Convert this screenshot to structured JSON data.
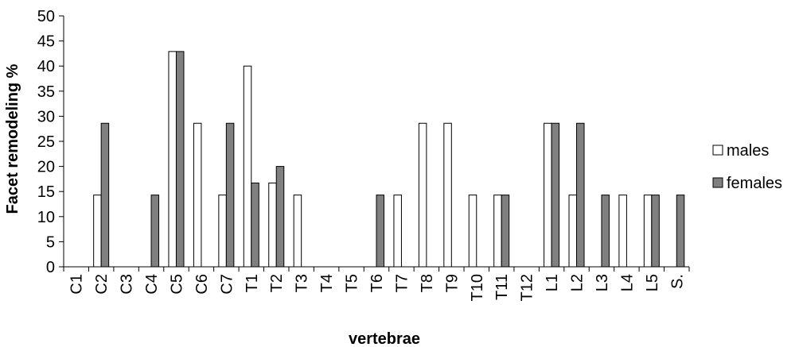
{
  "chart_data": {
    "type": "bar",
    "title": "",
    "xlabel": "vertebrae",
    "ylabel": "Facet  remodeling %",
    "ylim": [
      0,
      50
    ],
    "yticks": [
      0,
      5,
      10,
      15,
      20,
      25,
      30,
      35,
      40,
      45,
      50
    ],
    "grid": false,
    "legend_position": "right",
    "categories": [
      "C1",
      "C2",
      "C3",
      "C4",
      "C5",
      "C6",
      "C7",
      "T1",
      "T2",
      "T3",
      "T4",
      "T5",
      "T6",
      "T7",
      "T8",
      "T9",
      "T10",
      "T11",
      "T12",
      "L1",
      "L2",
      "L3",
      "L4",
      "L5",
      "S."
    ],
    "series": [
      {
        "name": "males",
        "color": "#ffffff",
        "values": [
          0,
          14.3,
          0,
          0,
          42.9,
          28.6,
          14.3,
          40,
          16.7,
          14.3,
          0,
          0,
          0,
          14.3,
          28.6,
          28.6,
          14.3,
          14.3,
          0,
          28.6,
          14.3,
          0,
          14.3,
          14.3,
          0
        ]
      },
      {
        "name": "females",
        "color": "#808080",
        "values": [
          0,
          28.6,
          0,
          14.3,
          42.9,
          0,
          28.6,
          16.7,
          20,
          0,
          0,
          0,
          14.3,
          0,
          0,
          0,
          0,
          14.3,
          0,
          28.6,
          28.6,
          14.3,
          0,
          14.3,
          14.3
        ]
      }
    ]
  }
}
